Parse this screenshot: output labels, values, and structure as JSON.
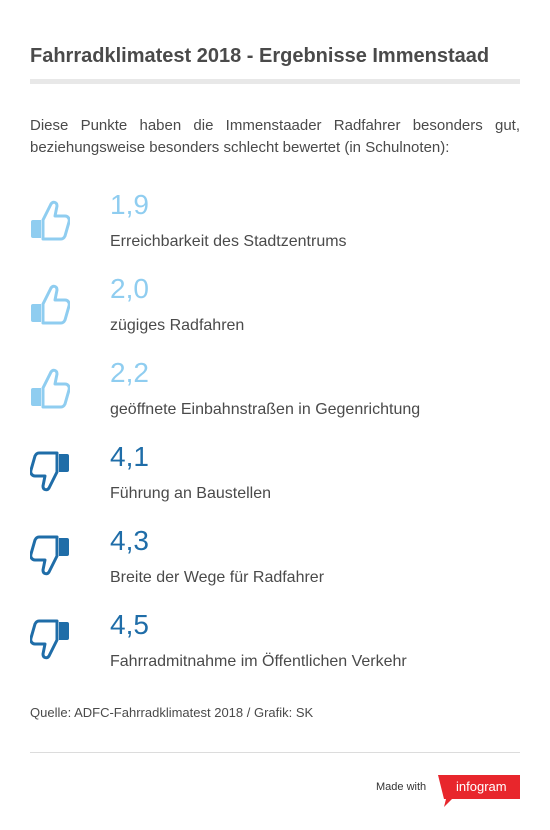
{
  "title": "Fahrradklimatest 2018 - Ergebnisse Immenstaad",
  "intro": "Diese Punkte haben die Immenstaader Radfahrer besonders gut, beziehungsweise besonders schlecht bewertet (in Schulnoten):",
  "items": [
    {
      "grade": "1,9",
      "label": "Erreichbarkeit des Stadtzentrums",
      "rating": "good",
      "icon": "thumbs-up-icon"
    },
    {
      "grade": "2,0",
      "label": "zügiges Radfahren",
      "rating": "good",
      "icon": "thumbs-up-icon"
    },
    {
      "grade": "2,2",
      "label": "geöffnete Einbahnstraßen in Gegenrichtung",
      "rating": "good",
      "icon": "thumbs-up-icon"
    },
    {
      "grade": "4,1",
      "label": "Führung an Baustellen",
      "rating": "bad",
      "icon": "thumbs-down-icon"
    },
    {
      "grade": "4,3",
      "label": "Breite der Wege für Radfahrer",
      "rating": "bad",
      "icon": "thumbs-down-icon"
    },
    {
      "grade": "4,5",
      "label": "Fahrradmitnahme im Öffentlichen Verkehr",
      "rating": "bad",
      "icon": "thumbs-down-icon"
    }
  ],
  "source": "Quelle: ADFC-Fahrradklimatest 2018 / Grafik: SK",
  "footer": {
    "made_with": "Made with",
    "brand": "infogram"
  },
  "colors": {
    "good": "#8fcdf0",
    "bad": "#1f6da8",
    "brand": "#e8262c",
    "text": "#4a4a4a"
  }
}
